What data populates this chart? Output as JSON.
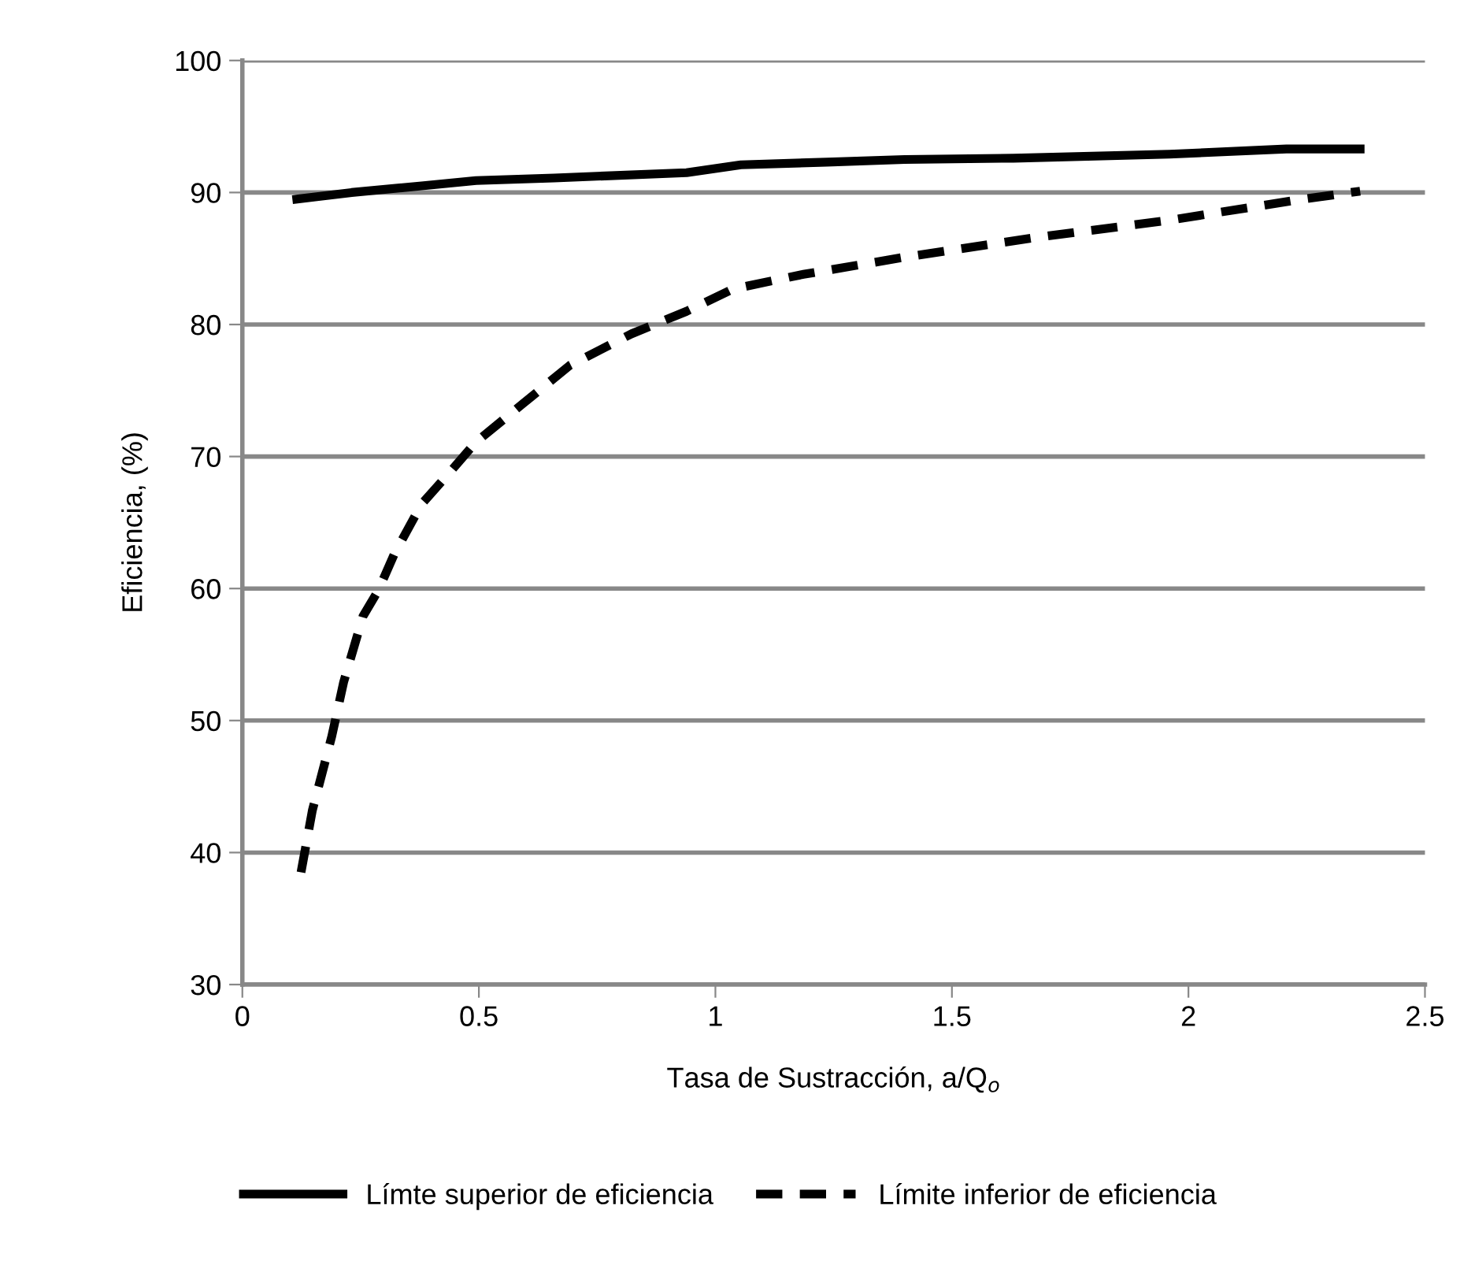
{
  "chart_data": {
    "type": "line",
    "xlabel": "Tasa de Sustracción, a/Q$_{o}$",
    "ylabel": "Eficiencia, (%)",
    "xlim": [
      0,
      2.5
    ],
    "xticks": [
      0,
      0.5,
      1,
      1.5,
      2,
      2.5
    ],
    "ylim": [
      30,
      100
    ],
    "yticks": [
      30,
      40,
      50,
      60,
      70,
      80,
      90,
      100
    ],
    "grid": "y",
    "legend": "bottom",
    "marker": "none",
    "series": [
      {
        "name": "Límte superior de eficiencia",
        "color": "#000000",
        "line_style": "solid",
        "x": [
          0.115,
          0.231,
          0.379,
          0.494,
          0.659,
          0.939,
          1.054,
          1.235,
          1.4,
          1.63,
          1.96,
          2.207,
          2.363
        ],
        "values": [
          89.5,
          90.0,
          90.5,
          90.9,
          91.1,
          91.5,
          92.1,
          92.3,
          92.5,
          92.6,
          92.9,
          93.3,
          93.3
        ]
      },
      {
        "name": "Límite inferior de eficiencia",
        "color": "#000000",
        "line_style": "dashed",
        "x": [
          0.124,
          0.148,
          0.189,
          0.214,
          0.255,
          0.288,
          0.321,
          0.379,
          0.436,
          0.494,
          0.593,
          0.692,
          0.823,
          0.939,
          1.038,
          1.186,
          1.4,
          1.68,
          1.96,
          2.223,
          2.363
        ],
        "values": [
          38.5,
          43.2,
          48.8,
          52.9,
          57.9,
          59.9,
          62.6,
          66.4,
          68.7,
          71.1,
          74.0,
          76.9,
          79.3,
          81.0,
          82.7,
          83.8,
          85.1,
          86.6,
          87.9,
          89.4,
          90.1
        ]
      }
    ]
  }
}
